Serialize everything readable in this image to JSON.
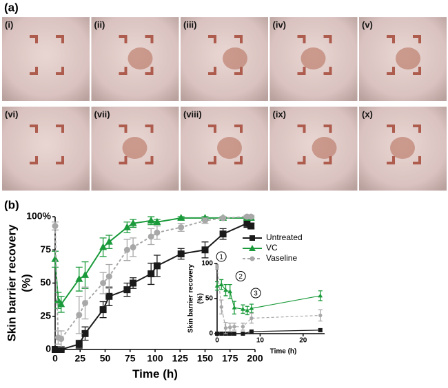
{
  "panel_labels": [
    "(a)",
    "(b)"
  ],
  "photo_labels": [
    "(i)",
    "(ii)",
    "(iii)",
    "(iv)",
    "(v)",
    "(vi)",
    "(vii)",
    "(viii)",
    "(ix)",
    "(x)"
  ],
  "chart_data": [
    {
      "type": "line",
      "xlabel": "Time (h)",
      "ylabel": [
        "Skin barrier recovery",
        "(%)"
      ],
      "xlim": [
        0,
        200
      ],
      "xticks": [
        0,
        25,
        50,
        75,
        100,
        125,
        150,
        175,
        200
      ],
      "ylim": [
        0,
        100
      ],
      "yticks": [
        0,
        25,
        50,
        75,
        {
          "value": 100,
          "label": "100%"
        }
      ],
      "legend": "right",
      "series": [
        {
          "name": "Untreated",
          "color": "#1a1a1a",
          "marker": "square",
          "line_style": "solid",
          "x": [
            0,
            6,
            24,
            30,
            48,
            54,
            72,
            78,
            96,
            102,
            126,
            150,
            168,
            192,
            196
          ],
          "values": [
            0,
            0,
            4,
            12,
            30,
            40,
            45,
            50,
            57,
            63,
            72,
            75,
            87,
            95,
            93
          ],
          "errors": [
            1,
            1,
            3,
            5,
            6,
            7,
            5,
            4,
            8,
            8,
            4,
            6,
            4,
            3,
            2
          ]
        },
        {
          "name": "VC",
          "color": "#1a9a3a",
          "marker": "triangle",
          "line_style": "solid",
          "x": [
            0,
            3,
            6,
            24,
            30,
            48,
            54,
            72,
            78,
            96,
            102,
            126,
            150,
            168,
            192,
            196
          ],
          "values": [
            68,
            37,
            34,
            53,
            56,
            77,
            81,
            92,
            95,
            97,
            96,
            99,
            99,
            99,
            99,
            99
          ],
          "errors": [
            6,
            6,
            6,
            9,
            10,
            7,
            5,
            4,
            3,
            3,
            2,
            1,
            1,
            1,
            1,
            1
          ]
        },
        {
          "name": "Vaseline",
          "color": "#a8a8a8",
          "marker": "circle",
          "line_style": "dashed",
          "x": [
            0,
            3,
            6,
            24,
            30,
            48,
            54,
            72,
            78,
            96,
            102,
            126,
            150,
            168,
            192,
            196
          ],
          "values": [
            93,
            9,
            8,
            26,
            35,
            50,
            55,
            75,
            77,
            85,
            88,
            92,
            97,
            99,
            100,
            100
          ],
          "errors": [
            3,
            5,
            6,
            14,
            12,
            8,
            9,
            8,
            7,
            6,
            5,
            3,
            2,
            1,
            1,
            1
          ]
        }
      ]
    },
    {
      "type": "line",
      "xlabel": "Time (h)",
      "ylabel": [
        "Skin barrier recovery",
        "(%)"
      ],
      "xlim": [
        0,
        25
      ],
      "xticks": [
        0,
        10,
        20
      ],
      "ylim": [
        0,
        100
      ],
      "yticks": [
        0,
        50,
        100
      ],
      "annotations": [
        "1",
        "2",
        "3"
      ],
      "series": [
        {
          "name": "Untreated",
          "color": "#1a1a1a",
          "marker": "square",
          "line_style": "solid",
          "x": [
            0,
            1,
            2,
            3,
            4,
            6,
            8,
            24
          ],
          "values": [
            0,
            0,
            0,
            0,
            0,
            0,
            3,
            5
          ],
          "errors": [
            1,
            1,
            1,
            1,
            1,
            1,
            2,
            2
          ]
        },
        {
          "name": "VC",
          "color": "#1a9a3a",
          "marker": "triangle",
          "line_style": "solid",
          "x": [
            0,
            1,
            2,
            3,
            4,
            6,
            7,
            8,
            24
          ],
          "values": [
            68,
            70,
            62,
            60,
            37,
            35,
            33,
            36,
            54
          ],
          "errors": [
            6,
            7,
            8,
            10,
            9,
            6,
            6,
            6,
            7
          ]
        },
        {
          "name": "Vaseline",
          "color": "#a8a8a8",
          "marker": "circle",
          "line_style": "dashed",
          "x": [
            0,
            1,
            2,
            3,
            4,
            6,
            8,
            24
          ],
          "values": [
            95,
            38,
            8,
            9,
            10,
            10,
            22,
            26
          ],
          "errors": [
            3,
            10,
            8,
            6,
            5,
            5,
            7,
            8
          ]
        }
      ]
    }
  ]
}
